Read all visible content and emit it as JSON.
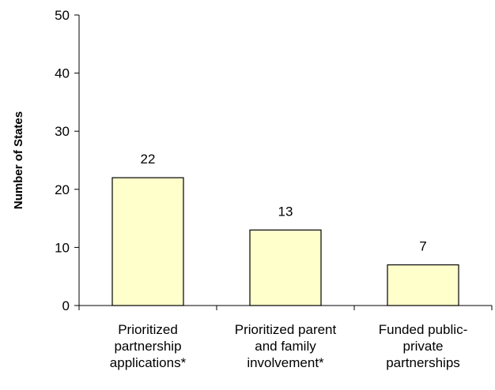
{
  "chart_data": {
    "type": "bar",
    "title": "",
    "xlabel": "",
    "ylabel": "Number of States",
    "ylim": [
      0,
      50
    ],
    "yticks": [
      0,
      10,
      20,
      30,
      40,
      50
    ],
    "categories": [
      [
        "Prioritized",
        "partnership",
        "applications*"
      ],
      [
        "Prioritized parent",
        "and family",
        "involvement*"
      ],
      [
        "Funded public-",
        "private",
        "partnerships"
      ]
    ],
    "values": [
      22,
      13,
      7
    ],
    "data_labels": [
      "22",
      "13",
      "7"
    ],
    "grid": false,
    "legend": "none",
    "colors": {
      "bar_fill": "#FFFFCC",
      "bar_stroke": "#000000",
      "axis": "#000000"
    }
  }
}
